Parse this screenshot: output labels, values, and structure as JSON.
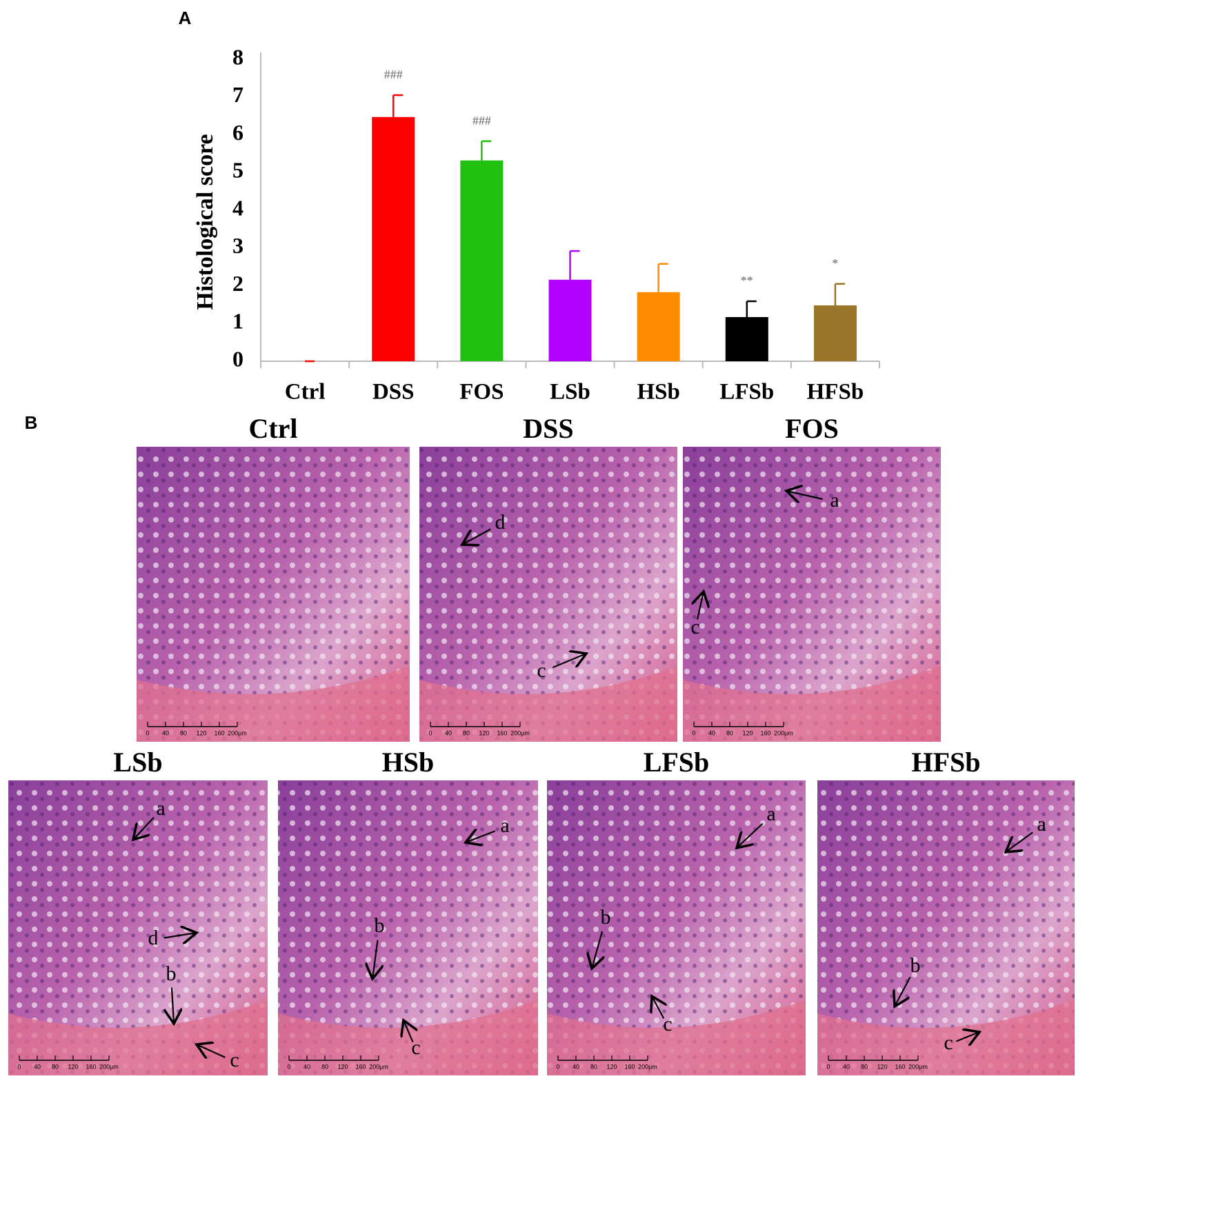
{
  "chart_data": {
    "type": "bar",
    "panel_label": "A",
    "ylabel": "Histological score",
    "categories": [
      "Ctrl",
      "DSS",
      "FOS",
      "LSb",
      "HSb",
      "LFSb",
      "HFSb"
    ],
    "values": [
      0,
      6.47,
      5.32,
      2.16,
      1.83,
      1.17,
      1.48
    ],
    "errors": [
      0,
      0.58,
      0.51,
      0.76,
      0.75,
      0.42,
      0.57
    ],
    "annotations": [
      null,
      "###",
      "###",
      null,
      null,
      "**",
      "*"
    ],
    "colors": [
      "#ff0000",
      "#ff0000",
      "#22c010",
      "#b200ff",
      "#ff8c00",
      "#000000",
      "#9a7428"
    ],
    "ylim": [
      0,
      8
    ],
    "yticks": [
      0,
      1,
      2,
      3,
      4,
      5,
      6,
      7,
      8
    ]
  },
  "histology": {
    "panel_label": "B",
    "scale_bar_labels": [
      "0",
      "40",
      "80",
      "120",
      "160",
      "200µm"
    ],
    "panels": [
      {
        "title": "Ctrl",
        "markers": []
      },
      {
        "title": "DSS",
        "markers": [
          "d",
          "c"
        ]
      },
      {
        "title": "FOS",
        "markers": [
          "a",
          "c"
        ]
      },
      {
        "title": "LSb",
        "markers": [
          "a",
          "d",
          "b",
          "c"
        ]
      },
      {
        "title": "HSb",
        "markers": [
          "a",
          "b",
          "c"
        ]
      },
      {
        "title": "LFSb",
        "markers": [
          "a",
          "b",
          "c"
        ]
      },
      {
        "title": "HFSb",
        "markers": [
          "a",
          "b",
          "c"
        ]
      }
    ]
  }
}
